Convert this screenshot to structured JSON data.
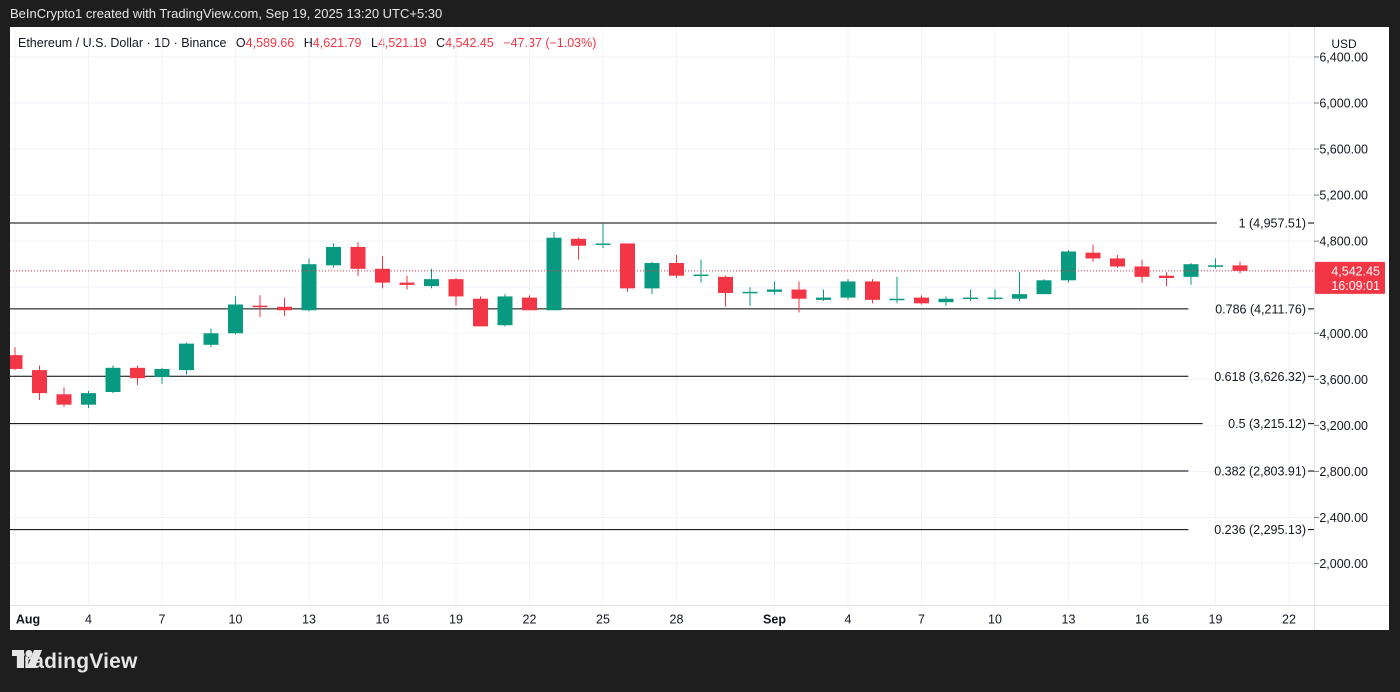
{
  "header": {
    "text": "BeInCrypto1 created with TradingView.com, Sep 19, 2025 13:20 UTC+5:30"
  },
  "legend": {
    "symbol": "Ethereum / U.S. Dollar · 1D · Binance",
    "open_label": "O",
    "open": "4,589.66",
    "high_label": "H",
    "high": "4,621.79",
    "low_label": "L",
    "low": "4,521.19",
    "close_label": "C",
    "close": "4,542.45",
    "change": "−47.37 (−1.03%)"
  },
  "currency": "USD",
  "price_tag": {
    "price": "4,542.45",
    "countdown": "16:09:01"
  },
  "brand": "TradingView",
  "colors": {
    "up": "#089981",
    "down": "#f23645",
    "fib_line": "#000000",
    "grid": "#f0f3fa",
    "background": "#ffffff"
  },
  "chart_data": {
    "type": "candlestick",
    "title": "Ethereum / U.S. Dollar · 1D · Binance",
    "x_ticks": [
      {
        "day": 1,
        "label": "Aug"
      },
      {
        "day": 4,
        "label": "4"
      },
      {
        "day": 7,
        "label": "7"
      },
      {
        "day": 10,
        "label": "10"
      },
      {
        "day": 13,
        "label": "13"
      },
      {
        "day": 16,
        "label": "16"
      },
      {
        "day": 19,
        "label": "19"
      },
      {
        "day": 22,
        "label": "22"
      },
      {
        "day": 25,
        "label": "25"
      },
      {
        "day": 28,
        "label": "28"
      },
      {
        "day": 32,
        "label": "Sep"
      },
      {
        "day": 35,
        "label": "4"
      },
      {
        "day": 38,
        "label": "7"
      },
      {
        "day": 41,
        "label": "10"
      },
      {
        "day": 44,
        "label": "13"
      },
      {
        "day": 47,
        "label": "16"
      },
      {
        "day": 50,
        "label": "19"
      },
      {
        "day": 53,
        "label": "22"
      }
    ],
    "y_ticks": [
      2000,
      2400,
      2800,
      3200,
      3600,
      4000,
      4800,
      5200,
      5600,
      6000,
      6400
    ],
    "y_tick_labels": [
      "2,000.00",
      "2,400.00",
      "2,800.00",
      "3,200.00",
      "3,600.00",
      "4,000.00",
      "4,800.00",
      "5,200.00",
      "5,600.00",
      "6,000.00",
      "6,400.00"
    ],
    "ylim": [
      1640,
      6660
    ],
    "candles": [
      {
        "o": 3810,
        "h": 3880,
        "l": 3680,
        "c": 3690
      },
      {
        "o": 3680,
        "h": 3720,
        "l": 3420,
        "c": 3480
      },
      {
        "o": 3470,
        "h": 3530,
        "l": 3360,
        "c": 3380
      },
      {
        "o": 3380,
        "h": 3500,
        "l": 3350,
        "c": 3480
      },
      {
        "o": 3490,
        "h": 3720,
        "l": 3480,
        "c": 3700
      },
      {
        "o": 3700,
        "h": 3720,
        "l": 3550,
        "c": 3610
      },
      {
        "o": 3620,
        "h": 3700,
        "l": 3560,
        "c": 3690
      },
      {
        "o": 3680,
        "h": 3920,
        "l": 3640,
        "c": 3910
      },
      {
        "o": 3900,
        "h": 4040,
        "l": 3880,
        "c": 4000
      },
      {
        "o": 4000,
        "h": 4320,
        "l": 3990,
        "c": 4250
      },
      {
        "o": 4240,
        "h": 4330,
        "l": 4140,
        "c": 4230
      },
      {
        "o": 4230,
        "h": 4310,
        "l": 4150,
        "c": 4200
      },
      {
        "o": 4200,
        "h": 4650,
        "l": 4190,
        "c": 4600
      },
      {
        "o": 4590,
        "h": 4780,
        "l": 4570,
        "c": 4750
      },
      {
        "o": 4750,
        "h": 4790,
        "l": 4500,
        "c": 4560
      },
      {
        "o": 4560,
        "h": 4670,
        "l": 4390,
        "c": 4440
      },
      {
        "o": 4440,
        "h": 4500,
        "l": 4380,
        "c": 4420
      },
      {
        "o": 4410,
        "h": 4560,
        "l": 4390,
        "c": 4470
      },
      {
        "o": 4470,
        "h": 4480,
        "l": 4240,
        "c": 4320
      },
      {
        "o": 4300,
        "h": 4320,
        "l": 4060,
        "c": 4060
      },
      {
        "o": 4070,
        "h": 4340,
        "l": 4060,
        "c": 4320
      },
      {
        "o": 4310,
        "h": 4330,
        "l": 4200,
        "c": 4200
      },
      {
        "o": 4200,
        "h": 4880,
        "l": 4200,
        "c": 4830
      },
      {
        "o": 4820,
        "h": 4830,
        "l": 4640,
        "c": 4760
      },
      {
        "o": 4770,
        "h": 4950,
        "l": 4740,
        "c": 4780
      },
      {
        "o": 4780,
        "h": 4780,
        "l": 4360,
        "c": 4390
      },
      {
        "o": 4390,
        "h": 4620,
        "l": 4340,
        "c": 4610
      },
      {
        "o": 4610,
        "h": 4680,
        "l": 4480,
        "c": 4500
      },
      {
        "o": 4500,
        "h": 4640,
        "l": 4440,
        "c": 4510
      },
      {
        "o": 4490,
        "h": 4500,
        "l": 4230,
        "c": 4350
      },
      {
        "o": 4350,
        "h": 4400,
        "l": 4240,
        "c": 4360
      },
      {
        "o": 4360,
        "h": 4450,
        "l": 4340,
        "c": 4380
      },
      {
        "o": 4380,
        "h": 4450,
        "l": 4180,
        "c": 4300
      },
      {
        "o": 4290,
        "h": 4380,
        "l": 4280,
        "c": 4310
      },
      {
        "o": 4310,
        "h": 4470,
        "l": 4290,
        "c": 4450
      },
      {
        "o": 4450,
        "h": 4470,
        "l": 4260,
        "c": 4290
      },
      {
        "o": 4300,
        "h": 4490,
        "l": 4260,
        "c": 4300
      },
      {
        "o": 4310,
        "h": 4330,
        "l": 4250,
        "c": 4260
      },
      {
        "o": 4270,
        "h": 4320,
        "l": 4240,
        "c": 4300
      },
      {
        "o": 4300,
        "h": 4380,
        "l": 4280,
        "c": 4310
      },
      {
        "o": 4300,
        "h": 4380,
        "l": 4290,
        "c": 4310
      },
      {
        "o": 4300,
        "h": 4530,
        "l": 4280,
        "c": 4340
      },
      {
        "o": 4340,
        "h": 4470,
        "l": 4340,
        "c": 4460
      },
      {
        "o": 4460,
        "h": 4720,
        "l": 4440,
        "c": 4710
      },
      {
        "o": 4700,
        "h": 4770,
        "l": 4620,
        "c": 4650
      },
      {
        "o": 4650,
        "h": 4680,
        "l": 4570,
        "c": 4580
      },
      {
        "o": 4580,
        "h": 4640,
        "l": 4440,
        "c": 4490
      },
      {
        "o": 4500,
        "h": 4530,
        "l": 4410,
        "c": 4480
      },
      {
        "o": 4490,
        "h": 4610,
        "l": 4420,
        "c": 4600
      },
      {
        "o": 4590,
        "h": 4650,
        "l": 4560,
        "c": 4590
      },
      {
        "o": 4589.66,
        "h": 4621.79,
        "l": 4521.19,
        "c": 4542.45
      }
    ],
    "fib_levels": [
      {
        "value": 4957.51,
        "label": "1 (4,957.51)"
      },
      {
        "value": 4211.76,
        "label": "0.786 (4,211.76)"
      },
      {
        "value": 3626.32,
        "label": "0.618 (3,626.32)"
      },
      {
        "value": 3215.12,
        "label": "0.5 (3,215.12)"
      },
      {
        "value": 2803.91,
        "label": "0.382 (2,803.91)"
      },
      {
        "value": 2295.13,
        "label": "0.236 (2,295.13)"
      }
    ],
    "last_price": 4542.45
  }
}
